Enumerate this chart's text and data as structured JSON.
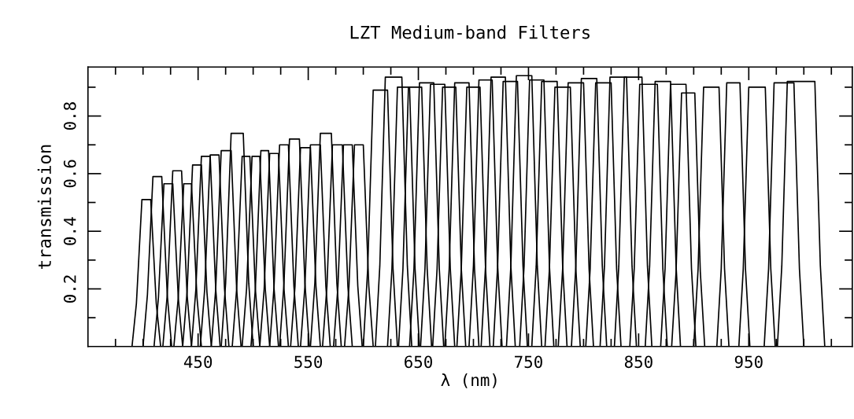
{
  "chart_data": {
    "type": "line",
    "title": "LZT Medium-band Filters",
    "xlabel": "λ (nm)",
    "ylabel": "transmission",
    "xlim": [
      350,
      1044
    ],
    "ylim": [
      0,
      0.97
    ],
    "xticks": [
      {
        "value": 375,
        "label": null
      },
      {
        "value": 400,
        "label": null
      },
      {
        "value": 425,
        "label": null
      },
      450,
      {
        "value": 475,
        "label": null
      },
      {
        "value": 500,
        "label": null
      },
      {
        "value": 525,
        "label": null
      },
      550,
      {
        "value": 575,
        "label": null
      },
      {
        "value": 600,
        "label": null
      },
      {
        "value": 625,
        "label": null
      },
      650,
      {
        "value": 675,
        "label": null
      },
      {
        "value": 700,
        "label": null
      },
      {
        "value": 725,
        "label": null
      },
      750,
      {
        "value": 775,
        "label": null
      },
      {
        "value": 800,
        "label": null
      },
      {
        "value": 825,
        "label": null
      },
      850,
      {
        "value": 875,
        "label": null
      },
      {
        "value": 900,
        "label": null
      },
      {
        "value": 925,
        "label": null
      },
      950,
      {
        "value": 975,
        "label": null
      },
      {
        "value": 1000,
        "label": null
      },
      {
        "value": 1025,
        "label": null
      }
    ],
    "yticks": [
      {
        "value": 0.1,
        "label": null
      },
      0.2,
      {
        "value": 0.3,
        "label": null
      },
      0.4,
      {
        "value": 0.5,
        "label": null
      },
      0.6,
      {
        "value": 0.7,
        "label": null
      },
      0.8,
      {
        "value": 0.9,
        "label": null
      }
    ],
    "grid": false,
    "marker": "none",
    "line_style": "solid",
    "series": [
      {
        "color": "#000000",
        "x": [
          390,
          394,
          399,
          403,
          407,
          412,
          416
        ],
        "values": [
          0,
          0.15,
          0.51,
          0.51,
          0.51,
          0.15,
          0
        ]
      },
      {
        "color": "#000000",
        "x": [
          400,
          404,
          409,
          413,
          417,
          422,
          426
        ],
        "values": [
          0,
          0.18,
          0.59,
          0.59,
          0.59,
          0.18,
          0
        ]
      },
      {
        "color": "#000000",
        "x": [
          410,
          414,
          419,
          423,
          427,
          432,
          436
        ],
        "values": [
          0,
          0.17,
          0.565,
          0.565,
          0.565,
          0.17,
          0
        ]
      },
      {
        "color": "#000000",
        "x": [
          418,
          422,
          427,
          431,
          435,
          440,
          444
        ],
        "values": [
          0,
          0.18,
          0.61,
          0.61,
          0.61,
          0.18,
          0
        ]
      },
      {
        "color": "#000000",
        "x": [
          428,
          432,
          437,
          440.5,
          444,
          449,
          453
        ],
        "values": [
          0,
          0.17,
          0.565,
          0.565,
          0.565,
          0.17,
          0
        ]
      },
      {
        "color": "#000000",
        "x": [
          436,
          440,
          445,
          449,
          453,
          458,
          462
        ],
        "values": [
          0,
          0.19,
          0.63,
          0.63,
          0.63,
          0.19,
          0
        ]
      },
      {
        "color": "#000000",
        "x": [
          444,
          448,
          453,
          457,
          461,
          466,
          470
        ],
        "values": [
          0,
          0.2,
          0.66,
          0.66,
          0.66,
          0.2,
          0
        ]
      },
      {
        "color": "#000000",
        "x": [
          452,
          456,
          461,
          465,
          469,
          474,
          478
        ],
        "values": [
          0,
          0.2,
          0.665,
          0.665,
          0.665,
          0.2,
          0
        ]
      },
      {
        "color": "#000000",
        "x": [
          462,
          466,
          471,
          475.5,
          480,
          485,
          489
        ],
        "values": [
          0,
          0.2,
          0.68,
          0.68,
          0.68,
          0.2,
          0
        ]
      },
      {
        "color": "#000000",
        "x": [
          471,
          475,
          480,
          485.5,
          491,
          496,
          500
        ],
        "values": [
          0,
          0.22,
          0.74,
          0.74,
          0.74,
          0.22,
          0
        ]
      },
      {
        "color": "#000000",
        "x": [
          481,
          485,
          490,
          493.5,
          497,
          502,
          506
        ],
        "values": [
          0,
          0.2,
          0.66,
          0.66,
          0.66,
          0.2,
          0
        ]
      },
      {
        "color": "#000000",
        "x": [
          490,
          494,
          499,
          502.5,
          506,
          511,
          515
        ],
        "values": [
          0,
          0.2,
          0.66,
          0.66,
          0.66,
          0.2,
          0
        ]
      },
      {
        "color": "#000000",
        "x": [
          498,
          502,
          507,
          510.5,
          514,
          519,
          523
        ],
        "values": [
          0,
          0.2,
          0.68,
          0.68,
          0.68,
          0.2,
          0
        ]
      },
      {
        "color": "#000000",
        "x": [
          506,
          510,
          515,
          519,
          523,
          528,
          532
        ],
        "values": [
          0,
          0.2,
          0.67,
          0.67,
          0.67,
          0.2,
          0
        ]
      },
      {
        "color": "#000000",
        "x": [
          515,
          519,
          524,
          528,
          532,
          537,
          541
        ],
        "values": [
          0,
          0.21,
          0.7,
          0.7,
          0.7,
          0.21,
          0
        ]
      },
      {
        "color": "#000000",
        "x": [
          524,
          528,
          533,
          537.5,
          542,
          547,
          551
        ],
        "values": [
          0,
          0.22,
          0.72,
          0.72,
          0.72,
          0.22,
          0
        ]
      },
      {
        "color": "#000000",
        "x": [
          534,
          538,
          543,
          547.5,
          552,
          557,
          561
        ],
        "values": [
          0,
          0.21,
          0.69,
          0.69,
          0.69,
          0.21,
          0
        ]
      },
      {
        "color": "#000000",
        "x": [
          543,
          547,
          552,
          556.5,
          561,
          566,
          570
        ],
        "values": [
          0,
          0.21,
          0.7,
          0.7,
          0.7,
          0.21,
          0
        ]
      },
      {
        "color": "#000000",
        "x": [
          552,
          556,
          561,
          566,
          571,
          576,
          580
        ],
        "values": [
          0,
          0.22,
          0.74,
          0.74,
          0.74,
          0.22,
          0
        ]
      },
      {
        "color": "#000000",
        "x": [
          563,
          567,
          572,
          576.5,
          581,
          586,
          590
        ],
        "values": [
          0,
          0.21,
          0.7,
          0.7,
          0.7,
          0.21,
          0
        ]
      },
      {
        "color": "#000000",
        "x": [
          573,
          577,
          582,
          586,
          590,
          595,
          599
        ],
        "values": [
          0,
          0.21,
          0.7,
          0.7,
          0.7,
          0.21,
          0
        ]
      },
      {
        "color": "#000000",
        "x": [
          583,
          587,
          592,
          596,
          600,
          605,
          609
        ],
        "values": [
          0,
          0.21,
          0.7,
          0.7,
          0.7,
          0.21,
          0
        ]
      },
      {
        "color": "#000000",
        "x": [
          600,
          604,
          609,
          615.5,
          622,
          627,
          631
        ],
        "values": [
          0,
          0.27,
          0.89,
          0.89,
          0.89,
          0.27,
          0
        ]
      },
      {
        "color": "#000000",
        "x": [
          611,
          615,
          620,
          627.5,
          635,
          640,
          644
        ],
        "values": [
          0,
          0.28,
          0.935,
          0.935,
          0.935,
          0.28,
          0
        ]
      },
      {
        "color": "#000000",
        "x": [
          622,
          626,
          631,
          636.5,
          642,
          647,
          651
        ],
        "values": [
          0,
          0.27,
          0.9,
          0.9,
          0.9,
          0.27,
          0
        ]
      },
      {
        "color": "#000000",
        "x": [
          632,
          636,
          641,
          647,
          653,
          658,
          662
        ],
        "values": [
          0,
          0.27,
          0.9,
          0.9,
          0.9,
          0.27,
          0
        ]
      },
      {
        "color": "#000000",
        "x": [
          642,
          646,
          651,
          657.5,
          664,
          669,
          673
        ],
        "values": [
          0,
          0.27,
          0.915,
          0.915,
          0.915,
          0.27,
          0
        ]
      },
      {
        "color": "#000000",
        "x": [
          652,
          656,
          661,
          667.5,
          674,
          679,
          683
        ],
        "values": [
          0,
          0.27,
          0.91,
          0.91,
          0.91,
          0.27,
          0
        ]
      },
      {
        "color": "#000000",
        "x": [
          663,
          667,
          672,
          678,
          684,
          689,
          693
        ],
        "values": [
          0,
          0.27,
          0.9,
          0.9,
          0.9,
          0.27,
          0
        ]
      },
      {
        "color": "#000000",
        "x": [
          674,
          678,
          683,
          689.5,
          696,
          701,
          705
        ],
        "values": [
          0,
          0.27,
          0.915,
          0.915,
          0.915,
          0.27,
          0
        ]
      },
      {
        "color": "#000000",
        "x": [
          685,
          689,
          694,
          700,
          706,
          711,
          715
        ],
        "values": [
          0,
          0.27,
          0.9,
          0.9,
          0.9,
          0.27,
          0
        ]
      },
      {
        "color": "#000000",
        "x": [
          696,
          700,
          705,
          711,
          717,
          722,
          726
        ],
        "values": [
          0,
          0.28,
          0.925,
          0.925,
          0.925,
          0.28,
          0
        ]
      },
      {
        "color": "#000000",
        "x": [
          707,
          711,
          716,
          722.5,
          729,
          734,
          738
        ],
        "values": [
          0,
          0.28,
          0.935,
          0.935,
          0.935,
          0.28,
          0
        ]
      },
      {
        "color": "#000000",
        "x": [
          718,
          722,
          727,
          733.5,
          740,
          745,
          749
        ],
        "values": [
          0,
          0.28,
          0.92,
          0.92,
          0.92,
          0.28,
          0
        ]
      },
      {
        "color": "#000000",
        "x": [
          730,
          734,
          739,
          746,
          753,
          758,
          762
        ],
        "values": [
          0,
          0.28,
          0.94,
          0.94,
          0.94,
          0.28,
          0
        ]
      },
      {
        "color": "#000000",
        "x": [
          742,
          746,
          751,
          757.5,
          764,
          769,
          773
        ],
        "values": [
          0,
          0.28,
          0.925,
          0.925,
          0.925,
          0.28,
          0
        ]
      },
      {
        "color": "#000000",
        "x": [
          753,
          757,
          762,
          769,
          776,
          781,
          785
        ],
        "values": [
          0,
          0.28,
          0.92,
          0.92,
          0.92,
          0.28,
          0
        ]
      },
      {
        "color": "#000000",
        "x": [
          765,
          769,
          774,
          781,
          788,
          793,
          797
        ],
        "values": [
          0,
          0.27,
          0.9,
          0.9,
          0.9,
          0.27,
          0
        ]
      },
      {
        "color": "#000000",
        "x": [
          777,
          781,
          786,
          793,
          800,
          805,
          809
        ],
        "values": [
          0,
          0.27,
          0.915,
          0.915,
          0.915,
          0.27,
          0
        ]
      },
      {
        "color": "#000000",
        "x": [
          789,
          793,
          798,
          805,
          812,
          817,
          821
        ],
        "values": [
          0,
          0.28,
          0.93,
          0.93,
          0.93,
          0.28,
          0
        ]
      },
      {
        "color": "#000000",
        "x": [
          802,
          806,
          811,
          818,
          825,
          830,
          834
        ],
        "values": [
          0,
          0.27,
          0.915,
          0.915,
          0.915,
          0.27,
          0
        ]
      },
      {
        "color": "#000000",
        "x": [
          815,
          819,
          824,
          831.5,
          839,
          844,
          848
        ],
        "values": [
          0,
          0.28,
          0.935,
          0.935,
          0.935,
          0.28,
          0
        ]
      },
      {
        "color": "#000000",
        "x": [
          828,
          832,
          837,
          845,
          853,
          858,
          862
        ],
        "values": [
          0,
          0.28,
          0.935,
          0.935,
          0.935,
          0.28,
          0
        ]
      },
      {
        "color": "#000000",
        "x": [
          842,
          846,
          851,
          859,
          867,
          872,
          876
        ],
        "values": [
          0,
          0.27,
          0.91,
          0.91,
          0.91,
          0.27,
          0
        ]
      },
      {
        "color": "#000000",
        "x": [
          856,
          860,
          865,
          872,
          879,
          884,
          888
        ],
        "values": [
          0,
          0.28,
          0.92,
          0.92,
          0.92,
          0.28,
          0
        ]
      },
      {
        "color": "#000000",
        "x": [
          870,
          874,
          879,
          886,
          893,
          898,
          902
        ],
        "values": [
          0,
          0.27,
          0.91,
          0.91,
          0.91,
          0.27,
          0
        ]
      },
      {
        "color": "#000000",
        "x": [
          880,
          884,
          889,
          895,
          901,
          906,
          910
        ],
        "values": [
          0,
          0.26,
          0.88,
          0.88,
          0.88,
          0.26,
          0
        ]
      },
      {
        "color": "#000000",
        "x": [
          900,
          904,
          909,
          916,
          923,
          928,
          932
        ],
        "values": [
          0,
          0.27,
          0.9,
          0.9,
          0.9,
          0.27,
          0
        ]
      },
      {
        "color": "#000000",
        "x": [
          921,
          925,
          930,
          936,
          942,
          947,
          951
        ],
        "values": [
          0,
          0.27,
          0.915,
          0.915,
          0.915,
          0.27,
          0
        ]
      },
      {
        "color": "#000000",
        "x": [
          941,
          945,
          950,
          957.5,
          965,
          970,
          974
        ],
        "values": [
          0,
          0.27,
          0.9,
          0.9,
          0.9,
          0.27,
          0
        ]
      },
      {
        "color": "#000000",
        "x": [
          964,
          968,
          973,
          982,
          991,
          996,
          1000
        ],
        "values": [
          0,
          0.27,
          0.915,
          0.915,
          0.915,
          0.27,
          0
        ]
      },
      {
        "color": "#000000",
        "x": [
          976,
          980,
          985,
          997.5,
          1010,
          1015,
          1019
        ],
        "values": [
          0,
          0.28,
          0.92,
          0.92,
          0.92,
          0.28,
          0
        ]
      }
    ]
  }
}
